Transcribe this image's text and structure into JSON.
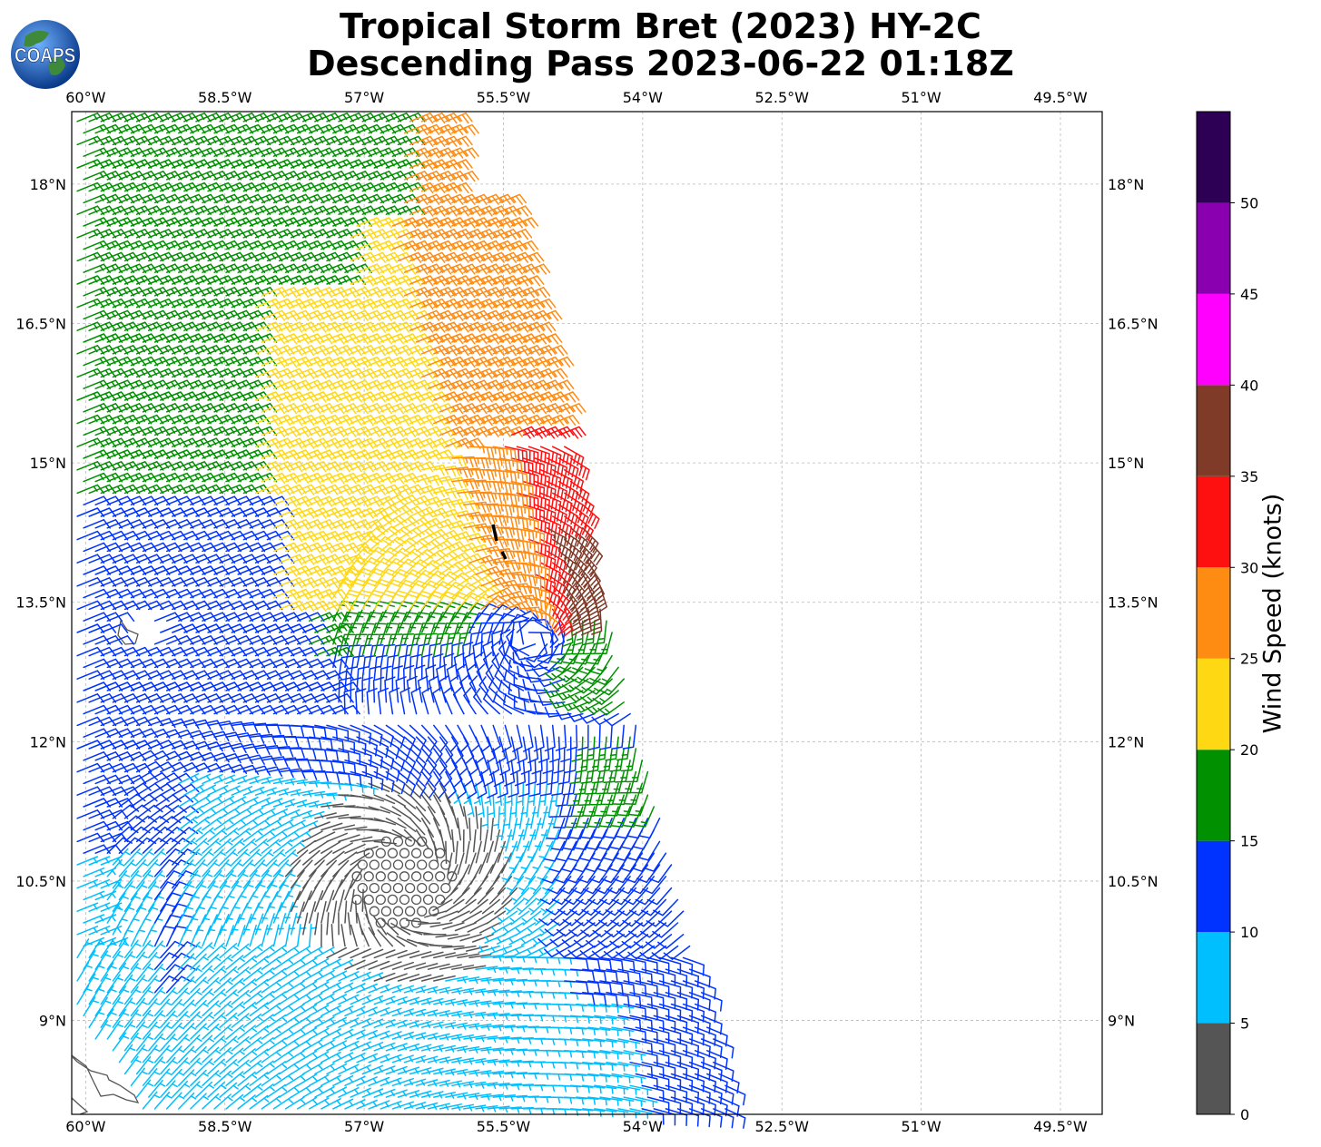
{
  "header": {
    "title_line1": "Tropical Storm Bret (2023) HY-2C",
    "title_line2": "Descending Pass 2023-06-22 01:18Z",
    "logo_text": "COAPS"
  },
  "map": {
    "lon_labels": [
      "60°W",
      "58.5°W",
      "57°W",
      "55.5°W",
      "54°W",
      "52.5°W",
      "51°W",
      "49.5°W"
    ],
    "lat_labels": [
      "18°N",
      "16.5°N",
      "15°N",
      "13.5°N",
      "12°N",
      "10.5°N",
      "9°N"
    ],
    "lon_values": [
      -60,
      -58.5,
      -57,
      -55.5,
      -54,
      -52.5,
      -51,
      -49.5
    ],
    "lat_values": [
      18,
      16.5,
      15,
      13.5,
      12,
      10.5,
      9
    ],
    "lon_range": [
      -60.15,
      -49.05
    ],
    "lat_range": [
      7.99,
      18.78
    ],
    "storm_center": {
      "lon": -55.2,
      "lat": 13.1
    }
  },
  "colorbar": {
    "label": "Wind Speed (knots)",
    "tick_labels": [
      "0",
      "5",
      "10",
      "15",
      "20",
      "25",
      "30",
      "35",
      "40",
      "45",
      "50"
    ],
    "bins": [
      {
        "from": 0,
        "to": 5,
        "color": "#555555"
      },
      {
        "from": 5,
        "to": 10,
        "color": "#00bfff"
      },
      {
        "from": 10,
        "to": 15,
        "color": "#0033ff"
      },
      {
        "from": 15,
        "to": 20,
        "color": "#009000"
      },
      {
        "from": 20,
        "to": 25,
        "color": "#ffd814"
      },
      {
        "from": 25,
        "to": 30,
        "color": "#ff8c12"
      },
      {
        "from": 30,
        "to": 35,
        "color": "#ff1010"
      },
      {
        "from": 35,
        "to": 40,
        "color": "#7f3a28"
      },
      {
        "from": 40,
        "to": 45,
        "color": "#ff00ff"
      },
      {
        "from": 45,
        "to": 50,
        "color": "#8a00b0"
      },
      {
        "from": 50,
        "to": 55,
        "color": "#2e0055"
      }
    ]
  }
}
